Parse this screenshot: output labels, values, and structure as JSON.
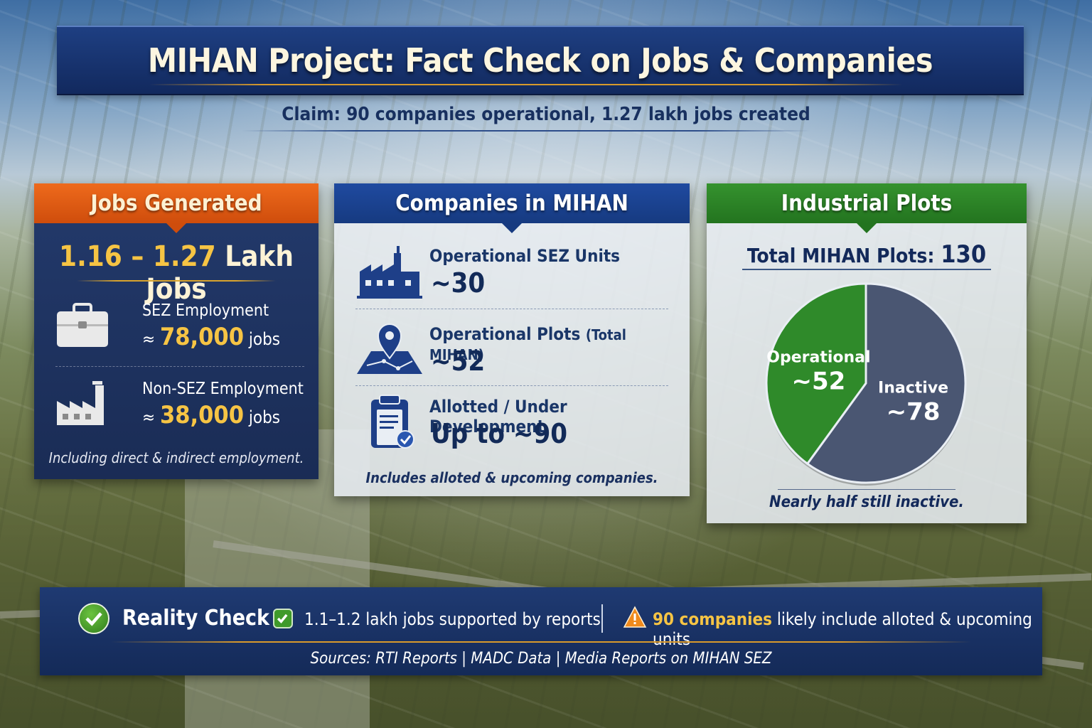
{
  "title": "MIHAN Project: Fact Check on Jobs & Companies",
  "claim": "Claim: 90 companies operational, 1.27 lakh jobs created",
  "jobs": {
    "heading": "Jobs Generated",
    "range_gold": "1.16 – 1.27",
    "range_suffix": "Lakh Jobs",
    "sez_label": "SEZ Employment",
    "sez_approx": "≈",
    "sez_value": "78,000",
    "sez_unit": "jobs",
    "nonsez_label": "Non-SEZ Employment",
    "nonsez_approx": "≈",
    "nonsez_value": "38,000",
    "nonsez_unit": "jobs",
    "note": "Including direct & indirect employment."
  },
  "companies": {
    "heading": "Companies in MIHAN",
    "rows": [
      {
        "label": "Operational SEZ Units",
        "label_small": "",
        "value": "~30",
        "icon": "factory-icon"
      },
      {
        "label": "Operational Plots",
        "label_small": "(Total MIHAN)",
        "value": "~52",
        "icon": "map-pin-icon"
      },
      {
        "label": "Allotted / Under Development",
        "label_small": "",
        "value": "Up to ~90",
        "icon": "clipboard-check-icon"
      }
    ],
    "note": "Includes alloted & upcoming companies."
  },
  "plots": {
    "heading": "Industrial Plots",
    "total_label": "Total MIHAN Plots:",
    "total_value": "130",
    "note": "Nearly half still inactive."
  },
  "chart_data": {
    "type": "pie",
    "title": "Total MIHAN Plots: 130",
    "slices": [
      {
        "label": "Operational",
        "display": "~52",
        "value": 52,
        "color": "#2f8a2a"
      },
      {
        "label": "Inactive",
        "display": "~78",
        "value": 78,
        "color": "#4a5672"
      }
    ]
  },
  "reality": {
    "title": "Reality Check",
    "point_a": "1.1–1.2 lakh jobs supported by reports",
    "point_b_bold": "90 companies",
    "point_b_rest": " likely include alloted & upcoming units",
    "sources": "Sources: RTI Reports | MADC Data | Media Reports on MIHAN SEZ"
  },
  "colors": {
    "navy": "#1a2c55",
    "orange": "#ee6a1c",
    "blue": "#1f4aa0",
    "green": "#35922e",
    "gold": "#f6c444"
  }
}
